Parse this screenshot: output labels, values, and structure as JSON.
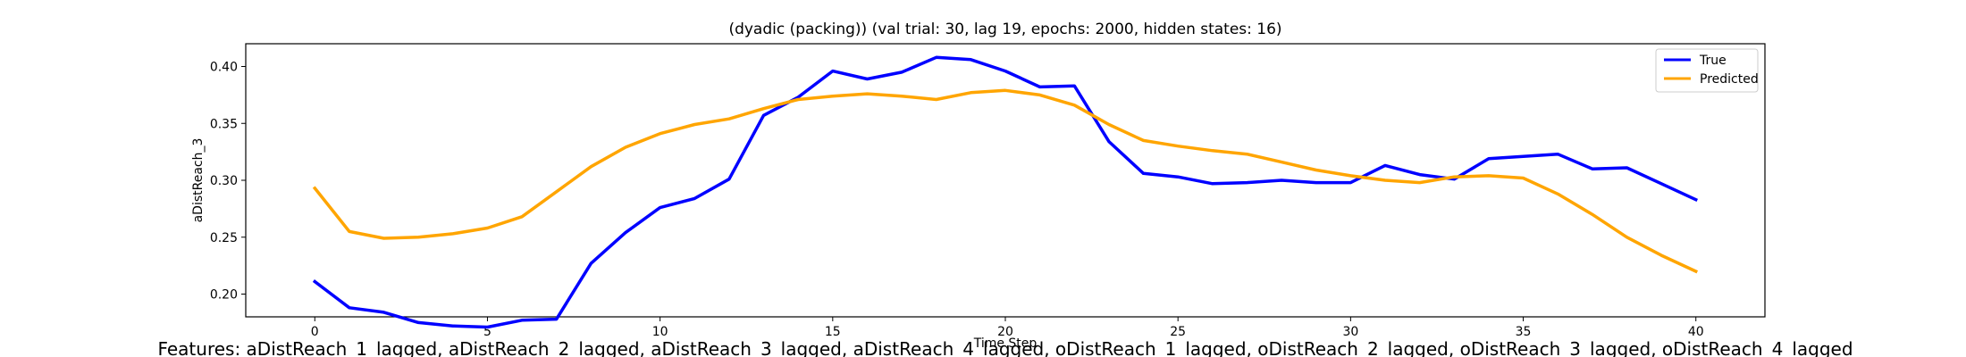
{
  "chart_data": {
    "type": "line",
    "title": "(dyadic (packing)) (val trial: 30, lag 19, epochs: 2000, hidden states: 16)",
    "xlabel": "Time Step",
    "ylabel": "aDistReach_3",
    "xlim": [
      -2,
      42
    ],
    "ylim": [
      0.18,
      0.42
    ],
    "x_ticks": [
      0,
      5,
      10,
      15,
      20,
      25,
      30,
      35,
      40
    ],
    "y_ticks": [
      0.2,
      0.25,
      0.3,
      0.35,
      0.4
    ],
    "y_tick_labels": [
      "0.20",
      "0.25",
      "0.30",
      "0.35",
      "0.40"
    ],
    "grid": false,
    "legend_position": "top-right",
    "x": [
      0,
      1,
      2,
      3,
      4,
      5,
      6,
      7,
      8,
      9,
      10,
      11,
      12,
      13,
      14,
      15,
      16,
      17,
      18,
      19,
      20,
      21,
      22,
      23,
      24,
      25,
      26,
      27,
      28,
      29,
      30,
      31,
      32,
      33,
      34,
      35,
      36,
      37,
      38,
      39,
      40
    ],
    "series": [
      {
        "name": "True",
        "color": "#0000ff",
        "values": [
          0.211,
          0.188,
          0.184,
          0.175,
          0.172,
          0.171,
          0.177,
          0.178,
          0.227,
          0.254,
          0.276,
          0.284,
          0.301,
          0.357,
          0.373,
          0.396,
          0.389,
          0.395,
          0.408,
          0.406,
          0.396,
          0.382,
          0.383,
          0.334,
          0.306,
          0.303,
          0.297,
          0.298,
          0.3,
          0.298,
          0.298,
          0.313,
          0.305,
          0.301,
          0.319,
          0.321,
          0.323,
          0.31,
          0.311,
          0.297,
          0.283
        ]
      },
      {
        "name": "Predicted",
        "color": "#ffa500",
        "values": [
          0.293,
          0.255,
          0.249,
          0.25,
          0.253,
          0.258,
          0.268,
          0.29,
          0.312,
          0.329,
          0.341,
          0.349,
          0.354,
          0.363,
          0.371,
          0.374,
          0.376,
          0.374,
          0.371,
          0.377,
          0.379,
          0.375,
          0.366,
          0.349,
          0.335,
          0.33,
          0.326,
          0.323,
          0.316,
          0.309,
          0.304,
          0.3,
          0.298,
          0.303,
          0.304,
          0.302,
          0.288,
          0.27,
          0.25,
          0.234,
          0.22
        ]
      }
    ]
  },
  "caption": "Features: aDistReach_1_lagged, aDistReach_2_lagged, aDistReach_3_lagged, aDistReach_4_lagged, oDistReach_1_lagged, oDistReach_2_lagged, oDistReach_3_lagged, oDistReach_4_lagged"
}
